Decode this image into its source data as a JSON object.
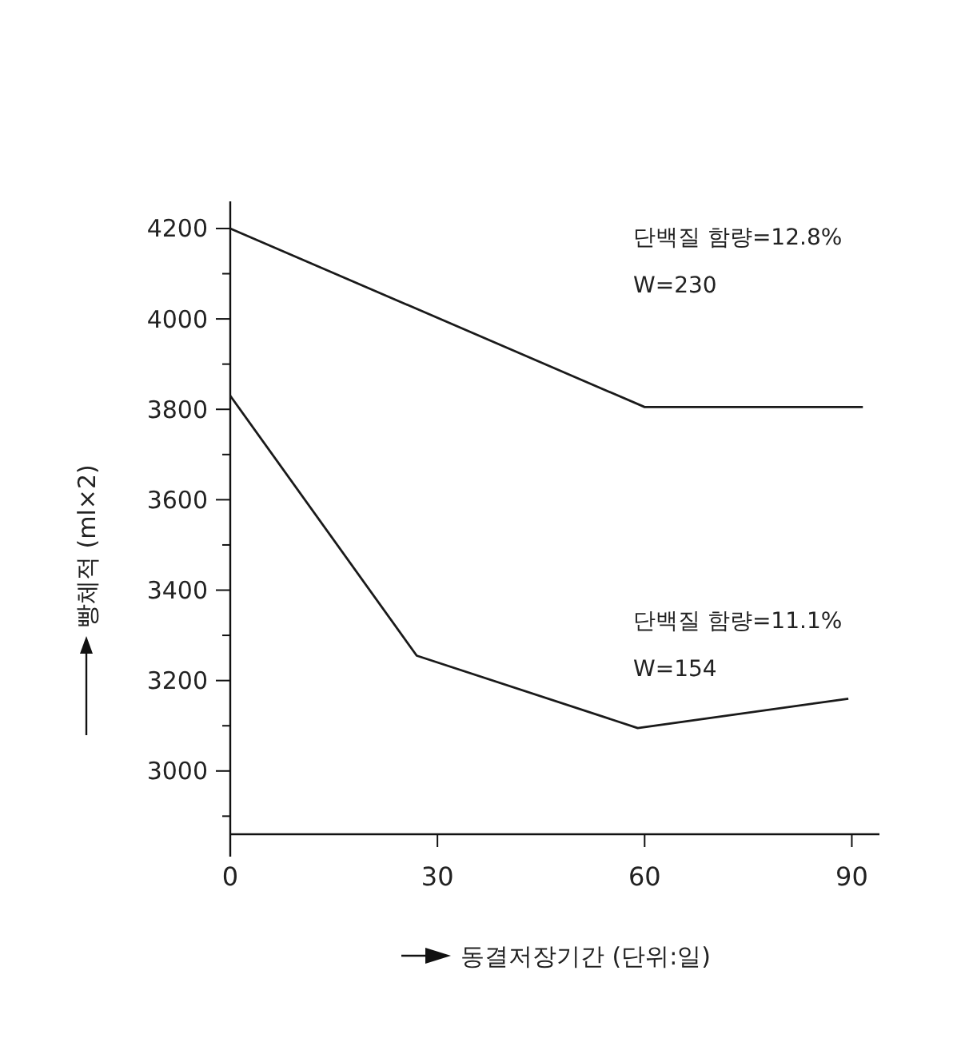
{
  "chart_data": {
    "type": "line",
    "xlabel": "동결저장기간 (단위:일)",
    "ylabel": "빵체적 (ml×2)",
    "xlim": [
      0,
      94
    ],
    "ylim": [
      2860,
      4260
    ],
    "xticks": [
      0,
      30,
      60,
      90
    ],
    "yticks": [
      {
        "value": 2900,
        "label": null
      },
      3000,
      {
        "value": 3100,
        "label": null
      },
      3200,
      {
        "value": 3300,
        "label": null
      },
      3400,
      {
        "value": 3500,
        "label": null
      },
      3600,
      {
        "value": 3700,
        "label": null
      },
      3800,
      {
        "value": 3900,
        "label": null
      },
      4000,
      {
        "value": 4100,
        "label": null
      },
      4200
    ],
    "series": [
      {
        "color": "#1a1a1a",
        "x": [
          0,
          60,
          91.6
        ],
        "values": [
          4200,
          3805,
          3805
        ]
      },
      {
        "color": "#1a1a1a",
        "x": [
          0,
          27,
          59,
          89.5
        ],
        "values": [
          3830,
          3255,
          3095,
          3160
        ]
      }
    ],
    "annotations": [
      "단백질 함량=12.8%",
      "W=230",
      "단백질 함량=11.1%",
      "W=154"
    ],
    "grid": false,
    "marker": "none",
    "line_style": "solid"
  }
}
